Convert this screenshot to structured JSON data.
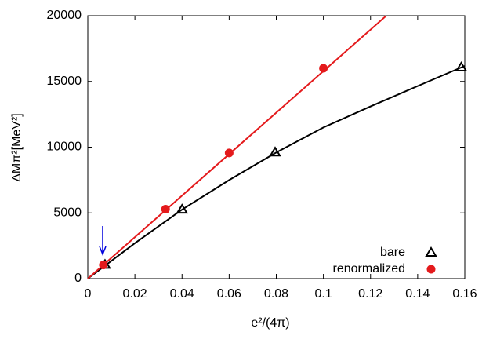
{
  "chart_data": {
    "type": "scatter",
    "x_label": "e²/(4π)",
    "y_label": "ΔMπ²[MeV²]",
    "xlim": [
      0,
      0.16
    ],
    "xticks": [
      0,
      0.02,
      0.04,
      0.06,
      0.08,
      0.1,
      0.12,
      0.14,
      0.16
    ],
    "ylim": [
      0,
      20000
    ],
    "yticks": [
      0,
      5000,
      10000,
      15000,
      20000
    ],
    "legend": "bottom-right",
    "series": [
      {
        "name": "bare",
        "color": "#000000",
        "marker": "triangle",
        "x": [
          0.0073,
          0.04,
          0.0795,
          0.1585
        ],
        "values": [
          1050,
          5250,
          9600,
          16060
        ],
        "curve_x": [
          0,
          0.02,
          0.04,
          0.06,
          0.08,
          0.1,
          0.12,
          0.14,
          0.16
        ],
        "curve_y": [
          0,
          2700,
          5250,
          7500,
          9600,
          11500,
          13100,
          14650,
          16180
        ]
      },
      {
        "name": "renormalized",
        "color": "#e41a1c",
        "marker": "circle",
        "x": [
          0.0066,
          0.033,
          0.06,
          0.1
        ],
        "values": [
          1040,
          5280,
          9560,
          16000
        ],
        "curve_x": [
          0,
          0.1267
        ],
        "curve_y": [
          0,
          20000
        ]
      }
    ]
  }
}
